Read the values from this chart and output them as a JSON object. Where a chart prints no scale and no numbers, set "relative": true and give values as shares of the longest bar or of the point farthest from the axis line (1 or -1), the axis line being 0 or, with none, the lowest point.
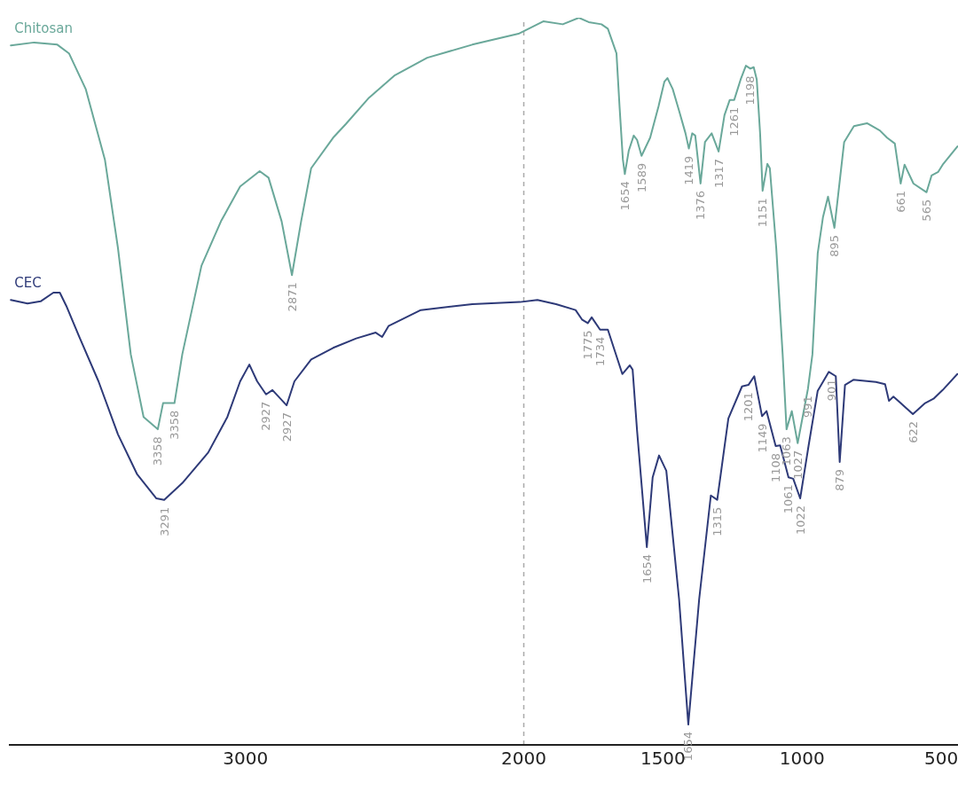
{
  "chart_data": {
    "type": "line",
    "relative": true,
    "xlim": [
      3850,
      440
    ],
    "xticks": [
      3000,
      2000,
      1500,
      1000,
      500
    ],
    "series": [
      {
        "name": "Chitosan",
        "color": "#6aa89a",
        "x": [
          3843,
          3759,
          3676,
          3634,
          3574,
          3505,
          3458,
          3412,
          3366,
          3315,
          3296,
          3255,
          3227,
          3158,
          3088,
          3019,
          2949,
          2917,
          2870,
          2833,
          2800,
          2764,
          2685,
          2639,
          2556,
          2463,
          2347,
          2185,
          2019,
          1930,
          1860,
          1802,
          1767,
          1721,
          1698,
          1667,
          1656,
          1644,
          1637,
          1623,
          1605,
          1593,
          1577,
          1546,
          1516,
          1495,
          1484,
          1465,
          1442,
          1419,
          1407,
          1395,
          1384,
          1365,
          1349,
          1325,
          1300,
          1279,
          1260,
          1244,
          1221,
          1202,
          1186,
          1174,
          1163,
          1151,
          1142,
          1125,
          1116,
          1093,
          1070,
          1056,
          1037,
          1016,
          979,
          963,
          944,
          925,
          907,
          884,
          849,
          814,
          767,
          721,
          695,
          667,
          646,
          632,
          600,
          553,
          535,
          511,
          493,
          442
        ],
        "values": [
          0.962,
          0.966,
          0.963,
          0.951,
          0.902,
          0.805,
          0.683,
          0.537,
          0.451,
          0.434,
          0.47,
          0.47,
          0.537,
          0.659,
          0.72,
          0.768,
          0.789,
          0.78,
          0.72,
          0.646,
          0.72,
          0.793,
          0.835,
          0.854,
          0.89,
          0.921,
          0.945,
          0.963,
          0.978,
          0.995,
          0.991,
          1.0,
          0.994,
          0.991,
          0.985,
          0.951,
          0.878,
          0.805,
          0.785,
          0.817,
          0.838,
          0.832,
          0.81,
          0.835,
          0.878,
          0.912,
          0.917,
          0.902,
          0.872,
          0.841,
          0.82,
          0.841,
          0.838,
          0.772,
          0.829,
          0.841,
          0.816,
          0.866,
          0.887,
          0.887,
          0.915,
          0.934,
          0.93,
          0.932,
          0.915,
          0.841,
          0.762,
          0.799,
          0.793,
          0.683,
          0.537,
          0.434,
          0.459,
          0.415,
          0.49,
          0.537,
          0.676,
          0.726,
          0.754,
          0.711,
          0.829,
          0.851,
          0.855,
          0.845,
          0.835,
          0.827,
          0.772,
          0.798,
          0.772,
          0.76,
          0.783,
          0.788,
          0.799,
          0.823
        ]
      },
      {
        "name": "CEC",
        "color": "#2e3a78",
        "x": [
          3843,
          3783,
          3736,
          3690,
          3667,
          3644,
          3597,
          3528,
          3458,
          3389,
          3320,
          3292,
          3227,
          3134,
          3065,
          3019,
          2986,
          2958,
          2926,
          2903,
          2852,
          2824,
          2764,
          2685,
          2602,
          2532,
          2509,
          2486,
          2370,
          2185,
          2014,
          1951,
          1884,
          1814,
          1791,
          1770,
          1756,
          1726,
          1698,
          1646,
          1619,
          1609,
          1593,
          1558,
          1537,
          1514,
          1488,
          1442,
          1409,
          1370,
          1328,
          1305,
          1265,
          1216,
          1193,
          1172,
          1144,
          1128,
          1095,
          1079,
          1049,
          1032,
          1007,
          977,
          944,
          904,
          879,
          865,
          846,
          816,
          735,
          702,
          688,
          672,
          602,
          558,
          528,
          495,
          442
        ],
        "values": [
          0.612,
          0.607,
          0.61,
          0.622,
          0.622,
          0.604,
          0.561,
          0.5,
          0.427,
          0.372,
          0.339,
          0.337,
          0.36,
          0.402,
          0.451,
          0.5,
          0.523,
          0.5,
          0.482,
          0.488,
          0.467,
          0.5,
          0.53,
          0.546,
          0.559,
          0.567,
          0.561,
          0.576,
          0.598,
          0.606,
          0.609,
          0.612,
          0.606,
          0.598,
          0.585,
          0.58,
          0.588,
          0.571,
          0.571,
          0.51,
          0.522,
          0.516,
          0.432,
          0.272,
          0.368,
          0.398,
          0.377,
          0.2,
          0.028,
          0.2,
          0.343,
          0.337,
          0.449,
          0.493,
          0.495,
          0.507,
          0.452,
          0.459,
          0.411,
          0.412,
          0.368,
          0.366,
          0.339,
          0.411,
          0.487,
          0.513,
          0.507,
          0.389,
          0.495,
          0.502,
          0.499,
          0.496,
          0.473,
          0.479,
          0.455,
          0.47,
          0.476,
          0.488,
          0.51
        ]
      }
    ],
    "ref_lines": [
      {
        "axis": "x",
        "value": 2000,
        "color": "#aaaaaa",
        "line_style": "dashed"
      }
    ],
    "annotations": [
      {
        "text": "3358",
        "x": 3315,
        "y": 0.434
      },
      {
        "text": "3358",
        "x": 3255,
        "y": 0.47
      },
      {
        "text": "2871",
        "x": 2833,
        "y": 0.646
      },
      {
        "text": "1654",
        "x": 1637,
        "y": 0.785
      },
      {
        "text": "1589",
        "x": 1577,
        "y": 0.81
      },
      {
        "text": "1419",
        "x": 1407,
        "y": 0.82
      },
      {
        "text": "1376",
        "x": 1365,
        "y": 0.772
      },
      {
        "text": "1317",
        "x": 1300,
        "y": 0.816
      },
      {
        "text": "1261",
        "x": 1244,
        "y": 0.887
      },
      {
        "text": "1198",
        "x": 1186,
        "y": 0.93
      },
      {
        "text": "1151",
        "x": 1142,
        "y": 0.762
      },
      {
        "text": "1063",
        "x": 1056,
        "y": 0.434
      },
      {
        "text": "1027",
        "x": 1016,
        "y": 0.415
      },
      {
        "text": "991",
        "x": 979,
        "y": 0.49
      },
      {
        "text": "895",
        "x": 884,
        "y": 0.711
      },
      {
        "text": "661",
        "x": 646,
        "y": 0.772
      },
      {
        "text": "565",
        "x": 553,
        "y": 0.76
      },
      {
        "text": "3291",
        "x": 3292,
        "y": 0.337
      },
      {
        "text": "2927",
        "x": 2926,
        "y": 0.482
      },
      {
        "text": "2927",
        "x": 2852,
        "y": 0.467
      },
      {
        "text": "1775",
        "x": 1770,
        "y": 0.58
      },
      {
        "text": "1734",
        "x": 1726,
        "y": 0.571
      },
      {
        "text": "1654",
        "x": 1558,
        "y": 0.272
      },
      {
        "text": "1654",
        "x": 1409,
        "y": 0.028
      },
      {
        "text": "1315",
        "x": 1305,
        "y": 0.337
      },
      {
        "text": "1201",
        "x": 1193,
        "y": 0.495
      },
      {
        "text": "1149",
        "x": 1144,
        "y": 0.452
      },
      {
        "text": "1108",
        "x": 1095,
        "y": 0.411
      },
      {
        "text": "1061",
        "x": 1049,
        "y": 0.368
      },
      {
        "text": "1022",
        "x": 1007,
        "y": 0.339
      },
      {
        "text": "901",
        "x": 893,
        "y": 0.513
      },
      {
        "text": "879",
        "x": 865,
        "y": 0.389
      },
      {
        "text": "622",
        "x": 602,
        "y": 0.455
      }
    ]
  }
}
